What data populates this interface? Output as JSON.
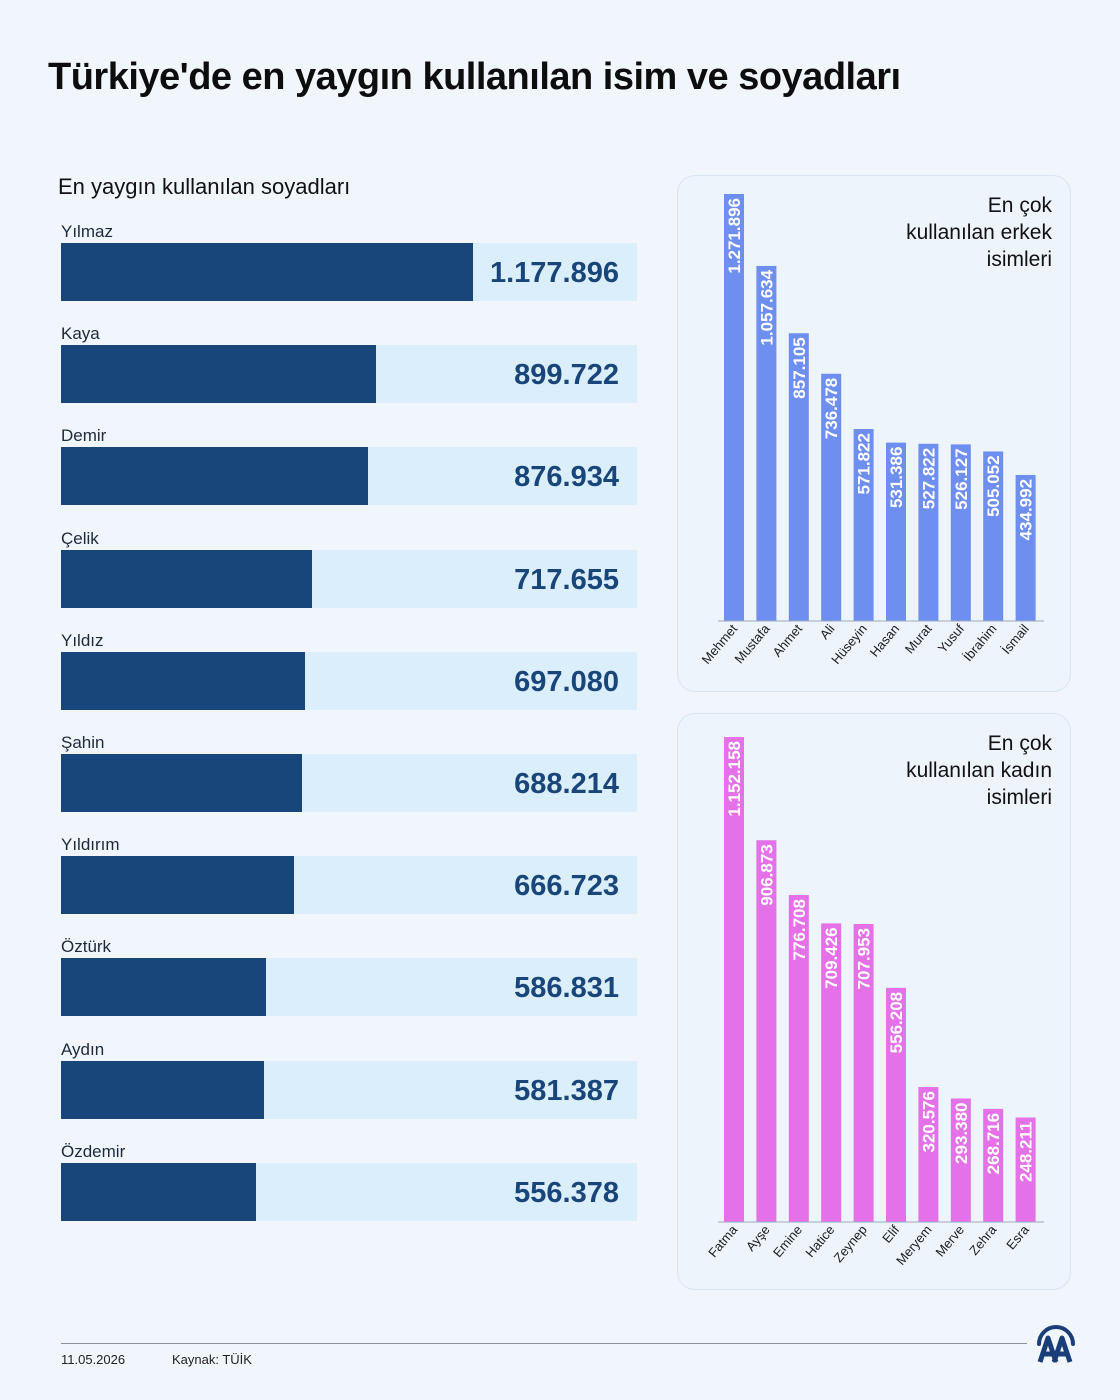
{
  "title": "Türkiye'de en yaygın kullanılan isim ve soyadları",
  "footer": {
    "date": "11.05.2026",
    "source": "Kaynak: TÜİK",
    "logo_text": "AA"
  },
  "colors": {
    "surname_bar": "#19467a",
    "surname_track": "#daeefc",
    "male_bar": "#6e8ff0",
    "female_bar": "#e471e8"
  },
  "chart_data": [
    {
      "type": "bar",
      "orientation": "horizontal",
      "title": "En yaygın kullanılan soyadları",
      "categories": [
        "Yılmaz",
        "Kaya",
        "Demir",
        "Çelik",
        "Yıldız",
        "Şahin",
        "Yıldırım",
        "Öztürk",
        "Aydın",
        "Özdemir"
      ],
      "values": [
        1177896,
        899722,
        876934,
        717655,
        697080,
        688214,
        666723,
        586831,
        581387,
        556378
      ],
      "labels": [
        "1.177.896",
        "899.722",
        "876.934",
        "717.655",
        "697.080",
        "688.214",
        "666.723",
        "586.831",
        "581.387",
        "556.378"
      ]
    },
    {
      "type": "bar",
      "orientation": "vertical",
      "title": "En çok kullanılan erkek isimleri",
      "title_lines": [
        "En çok",
        "kullanılan erkek",
        "isimleri"
      ],
      "categories": [
        "Mehmet",
        "Mustafa",
        "Ahmet",
        "Ali",
        "Hüseyin",
        "Hasan",
        "Murat",
        "Yusuf",
        "İbrahim",
        "İsmail"
      ],
      "values": [
        1271896,
        1057634,
        857105,
        736478,
        571822,
        531386,
        527822,
        526127,
        505052,
        434992
      ],
      "labels": [
        "1.271.896",
        "1.057.634",
        "857.105",
        "736.478",
        "571.822",
        "531.386",
        "527.822",
        "526.127",
        "505.052",
        "434.992"
      ]
    },
    {
      "type": "bar",
      "orientation": "vertical",
      "title": "En çok kullanılan kadın isimleri",
      "title_lines": [
        "En çok",
        "kullanılan kadın",
        "isimleri"
      ],
      "categories": [
        "Fatma",
        "Ayşe",
        "Emine",
        "Hatice",
        "Zeynep",
        "Elif",
        "Meryem",
        "Merve",
        "Zehra",
        "Esra"
      ],
      "values": [
        1152158,
        906873,
        776708,
        709426,
        707953,
        556208,
        320576,
        293380,
        268716,
        248211
      ],
      "labels": [
        "1.152.158",
        "906.873",
        "776.708",
        "709.426",
        "707.953",
        "556.208",
        "320.576",
        "293.380",
        "268.716",
        "248.211"
      ]
    }
  ]
}
